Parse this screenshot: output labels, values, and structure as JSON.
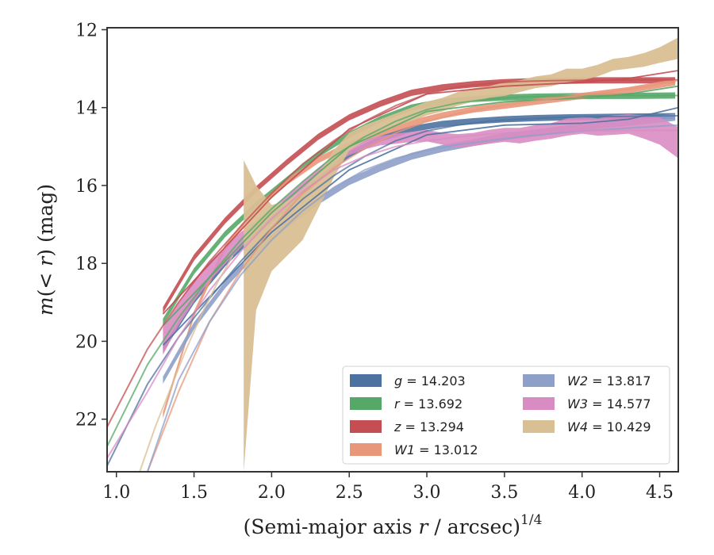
{
  "chart_data": {
    "type": "line",
    "xlabel": "(Semi-major axis r / arcsec)",
    "xlabel_parts": {
      "pre": "(Semi-major axis ",
      "var": "r",
      "post": " / arcsec)",
      "sup": "1/4"
    },
    "ylabel_parts": {
      "pre_var": "m",
      "mid": "(< ",
      "var": "r",
      "post": ") (mag)"
    },
    "xlim": [
      0.94,
      4.62
    ],
    "ylim": [
      23.35,
      11.95
    ],
    "y_inverted": true,
    "xticks": [
      "1.0",
      "1.5",
      "2.0",
      "2.5",
      "3.0",
      "3.5",
      "4.0",
      "4.5"
    ],
    "xtick_values": [
      1.0,
      1.5,
      2.0,
      2.5,
      3.0,
      3.5,
      4.0,
      4.5
    ],
    "yticks": [
      "12",
      "14",
      "16",
      "18",
      "20",
      "22"
    ],
    "ytick_values": [
      12,
      14,
      16,
      18,
      20,
      22
    ],
    "grid": false,
    "legend_position": "lower-right",
    "series": [
      {
        "name": "g",
        "legend": "g = 14.203",
        "color": "#4c72a0",
        "band": {
          "x": [
            1.3,
            1.5,
            1.7,
            1.9,
            2.1,
            2.3,
            2.5,
            2.7,
            2.9,
            3.1,
            3.3,
            3.5,
            3.7,
            3.9,
            4.1,
            4.3,
            4.6
          ],
          "y": [
            20.2,
            18.95,
            18.0,
            17.2,
            16.55,
            15.85,
            15.2,
            14.8,
            14.55,
            14.42,
            14.35,
            14.3,
            14.27,
            14.25,
            14.24,
            14.23,
            14.22
          ],
          "width": 0.08
        },
        "model": {
          "x": [
            0.94,
            1.2,
            1.4,
            1.6,
            1.8,
            2.0,
            2.2,
            2.4,
            2.6,
            2.8,
            3.0,
            3.2,
            3.4,
            3.6,
            3.8,
            4.0,
            4.2,
            4.4,
            4.62
          ],
          "y": [
            23.2,
            21.1,
            19.9,
            18.9,
            17.95,
            17.1,
            16.35,
            15.75,
            15.25,
            14.85,
            14.6,
            14.45,
            14.35,
            14.3,
            14.26,
            14.24,
            14.23,
            14.22,
            14.21
          ]
        },
        "model2": {
          "x": [
            1.3,
            2.0,
            2.5,
            3.0,
            3.5,
            4.0,
            4.3,
            4.62
          ],
          "y": [
            20.1,
            17.2,
            15.6,
            14.7,
            14.45,
            14.4,
            14.3,
            14.0
          ]
        }
      },
      {
        "name": "r",
        "legend": "r = 13.692",
        "color": "#55a868",
        "band": {
          "x": [
            1.3,
            1.5,
            1.7,
            1.9,
            2.1,
            2.3,
            2.5,
            2.7,
            2.9,
            3.1,
            3.3,
            3.5,
            3.7,
            3.9,
            4.1,
            4.3,
            4.6
          ],
          "y": [
            19.5,
            18.2,
            17.25,
            16.5,
            15.85,
            15.2,
            14.7,
            14.3,
            14.0,
            13.85,
            13.78,
            13.74,
            13.72,
            13.71,
            13.7,
            13.7,
            13.69
          ],
          "width": 0.08
        },
        "model": {
          "x": [
            0.94,
            1.2,
            1.4,
            1.6,
            1.8,
            2.0,
            2.2,
            2.4,
            2.6,
            2.8,
            3.0,
            3.2,
            3.4,
            3.6,
            3.8,
            4.0,
            4.2,
            4.4,
            4.62
          ],
          "y": [
            22.7,
            20.6,
            19.4,
            18.35,
            17.4,
            16.6,
            15.9,
            15.25,
            14.75,
            14.35,
            14.05,
            13.88,
            13.78,
            13.73,
            13.71,
            13.7,
            13.69,
            13.69,
            13.69
          ]
        },
        "model2": {
          "x": [
            1.3,
            2.0,
            2.5,
            3.0,
            3.5,
            4.0,
            4.3,
            4.62
          ],
          "y": [
            19.6,
            16.7,
            15.0,
            14.1,
            13.85,
            13.75,
            13.65,
            13.45
          ]
        }
      },
      {
        "name": "z",
        "legend": "z = 13.294",
        "color": "#c44e52",
        "band": {
          "x": [
            1.3,
            1.5,
            1.7,
            1.9,
            2.1,
            2.3,
            2.5,
            2.7,
            2.9,
            3.1,
            3.3,
            3.5,
            3.7,
            3.9,
            4.1,
            4.3,
            4.6
          ],
          "y": [
            19.2,
            17.85,
            16.9,
            16.1,
            15.4,
            14.75,
            14.25,
            13.9,
            13.62,
            13.48,
            13.4,
            13.35,
            13.32,
            13.31,
            13.3,
            13.3,
            13.3
          ],
          "width": 0.08
        },
        "model": {
          "x": [
            0.94,
            1.2,
            1.4,
            1.6,
            1.8,
            2.0,
            2.2,
            2.4,
            2.6,
            2.8,
            3.0,
            3.2,
            3.4,
            3.6,
            3.8,
            4.0,
            4.2,
            4.4,
            4.62
          ],
          "y": [
            22.2,
            20.2,
            19.0,
            17.95,
            17.05,
            16.2,
            15.45,
            14.85,
            14.35,
            13.95,
            13.65,
            13.47,
            13.38,
            13.33,
            13.31,
            13.3,
            13.3,
            13.29,
            13.29
          ]
        },
        "model2": {
          "x": [
            1.3,
            2.0,
            2.5,
            3.0,
            3.5,
            4.0,
            4.3,
            4.62
          ],
          "y": [
            19.3,
            16.3,
            14.55,
            13.65,
            13.45,
            13.35,
            13.25,
            13.05
          ]
        }
      },
      {
        "name": "W1",
        "legend": "W1 = 13.012",
        "color": "#e8977a",
        "band": {
          "x": [
            1.3,
            1.5,
            1.7,
            1.9,
            2.1,
            2.3,
            2.5,
            2.7,
            2.9,
            3.1,
            3.3,
            3.5,
            3.7,
            3.9,
            4.1,
            4.3,
            4.6
          ],
          "y": [
            21.9,
            19.3,
            17.6,
            16.6,
            15.9,
            15.35,
            14.95,
            14.65,
            14.4,
            14.2,
            14.05,
            13.95,
            13.85,
            13.75,
            13.65,
            13.55,
            13.35
          ],
          "width": 0.08
        },
        "model": {
          "x": [
            1.2,
            1.4,
            1.6,
            1.8,
            2.0,
            2.2,
            2.4,
            2.6,
            2.8,
            3.0,
            3.2,
            3.4,
            3.6,
            3.8,
            4.0,
            4.2,
            4.4,
            4.62
          ],
          "y": [
            23.35,
            21.3,
            19.5,
            18.2,
            17.1,
            16.2,
            15.55,
            15.05,
            14.65,
            14.35,
            14.15,
            14.0,
            13.88,
            13.78,
            13.68,
            13.58,
            13.47,
            13.3
          ]
        }
      },
      {
        "name": "W2",
        "legend": "W2 = 13.817",
        "color": "#8e9fc8",
        "band": {
          "x": [
            1.3,
            1.5,
            1.7,
            1.9,
            2.1,
            2.3,
            2.5,
            2.7,
            2.9,
            3.1,
            3.3,
            3.5,
            3.7,
            3.9,
            4.1,
            4.3,
            4.6
          ],
          "y": [
            21.0,
            19.6,
            18.55,
            17.7,
            17.0,
            16.4,
            15.9,
            15.55,
            15.25,
            15.05,
            14.9,
            14.75,
            14.65,
            14.55,
            14.45,
            14.38,
            14.25
          ],
          "width": 0.09
        },
        "model": {
          "x": [
            1.2,
            1.4,
            1.6,
            1.8,
            2.0,
            2.2,
            2.4,
            2.6,
            2.8,
            3.0,
            3.2,
            3.4,
            3.6,
            3.8,
            4.0,
            4.2,
            4.4,
            4.62
          ],
          "y": [
            23.35,
            21.0,
            19.5,
            18.3,
            17.4,
            16.65,
            16.05,
            15.6,
            15.3,
            15.1,
            14.95,
            14.85,
            14.75,
            14.67,
            14.6,
            14.55,
            14.5,
            14.45
          ]
        }
      },
      {
        "name": "W3",
        "legend": "W3 = 14.577",
        "color": "#d98cc2",
        "band": {
          "x": [
            1.3,
            1.4,
            1.5,
            1.6,
            1.7,
            1.8,
            1.9,
            2.0,
            2.1,
            2.2,
            2.3,
            2.4,
            2.5,
            2.6,
            2.7,
            2.8,
            2.9,
            3.0,
            3.1,
            3.2,
            3.3,
            3.4,
            3.5,
            3.6,
            3.7,
            3.8,
            3.9,
            4.0,
            4.1,
            4.2,
            4.3,
            4.4,
            4.5,
            4.62
          ],
          "y": [
            20.0,
            19.3,
            18.7,
            18.2,
            17.8,
            17.4,
            17.05,
            16.7,
            16.35,
            16.0,
            15.65,
            15.35,
            15.1,
            14.95,
            14.85,
            14.8,
            14.75,
            14.72,
            14.8,
            14.85,
            14.82,
            14.75,
            14.7,
            14.72,
            14.65,
            14.6,
            14.5,
            14.45,
            14.5,
            14.45,
            14.42,
            14.5,
            14.6,
            14.9
          ],
          "half": [
            0.35,
            0.3,
            0.28,
            0.25,
            0.22,
            0.2,
            0.15,
            0.12,
            0.1,
            0.1,
            0.1,
            0.1,
            0.12,
            0.12,
            0.12,
            0.13,
            0.13,
            0.15,
            0.15,
            0.17,
            0.17,
            0.18,
            0.18,
            0.2,
            0.2,
            0.2,
            0.22,
            0.22,
            0.22,
            0.25,
            0.25,
            0.3,
            0.35,
            0.4
          ]
        },
        "model": {
          "x": [
            0.94,
            1.2,
            1.4,
            1.6,
            1.8,
            2.0,
            2.2,
            2.4,
            2.6,
            2.8,
            3.0,
            3.2,
            3.4,
            3.6,
            3.8,
            4.0,
            4.2,
            4.4,
            4.62
          ],
          "y": [
            23.0,
            21.3,
            19.9,
            18.7,
            17.7,
            16.85,
            16.15,
            15.6,
            15.25,
            15.0,
            14.85,
            14.75,
            14.68,
            14.64,
            14.61,
            14.6,
            14.59,
            14.58,
            14.58
          ]
        }
      },
      {
        "name": "W4",
        "legend": "W4 = 10.429",
        "color": "#d9bf94",
        "band_upper": {
          "x": [
            1.82,
            1.9,
            2.0,
            2.1,
            2.2,
            2.3,
            2.4,
            2.5,
            2.6,
            2.7,
            2.8,
            2.9,
            3.0,
            3.1,
            3.2,
            3.3,
            3.4,
            3.5,
            3.6,
            3.7,
            3.8,
            3.9,
            4.0,
            4.1,
            4.2,
            4.3,
            4.4,
            4.5,
            4.62
          ],
          "y": [
            15.35,
            16.0,
            16.5,
            16.4,
            16.1,
            15.7,
            15.1,
            14.65,
            14.45,
            14.3,
            14.15,
            14.0,
            13.85,
            13.75,
            13.6,
            13.5,
            13.45,
            13.35,
            13.3,
            13.2,
            13.15,
            13.0,
            13.0,
            12.9,
            12.75,
            12.7,
            12.6,
            12.45,
            12.2
          ]
        },
        "band_lower": {
          "x": [
            1.82,
            1.9,
            2.0,
            2.1,
            2.2,
            2.3,
            2.4,
            2.5,
            2.6,
            2.7,
            2.8,
            2.9,
            3.0,
            3.1,
            3.2,
            3.3,
            3.4,
            3.5,
            3.6,
            3.7,
            3.8,
            3.9,
            4.0,
            4.1,
            4.2,
            4.3,
            4.4,
            4.5,
            4.62
          ],
          "y": [
            23.35,
            19.2,
            18.2,
            17.8,
            17.4,
            16.6,
            15.8,
            15.1,
            14.85,
            14.65,
            14.45,
            14.35,
            14.2,
            14.1,
            13.95,
            13.85,
            13.75,
            13.7,
            13.6,
            13.5,
            13.45,
            13.35,
            13.3,
            13.2,
            13.05,
            13.0,
            12.95,
            12.85,
            12.75
          ]
        },
        "model": {
          "x": [
            1.15,
            1.25,
            1.35,
            1.45,
            1.55,
            1.65,
            1.75
          ],
          "y": [
            23.35,
            22.2,
            21.2,
            20.2,
            19.3,
            18.5,
            17.8
          ]
        }
      }
    ]
  }
}
